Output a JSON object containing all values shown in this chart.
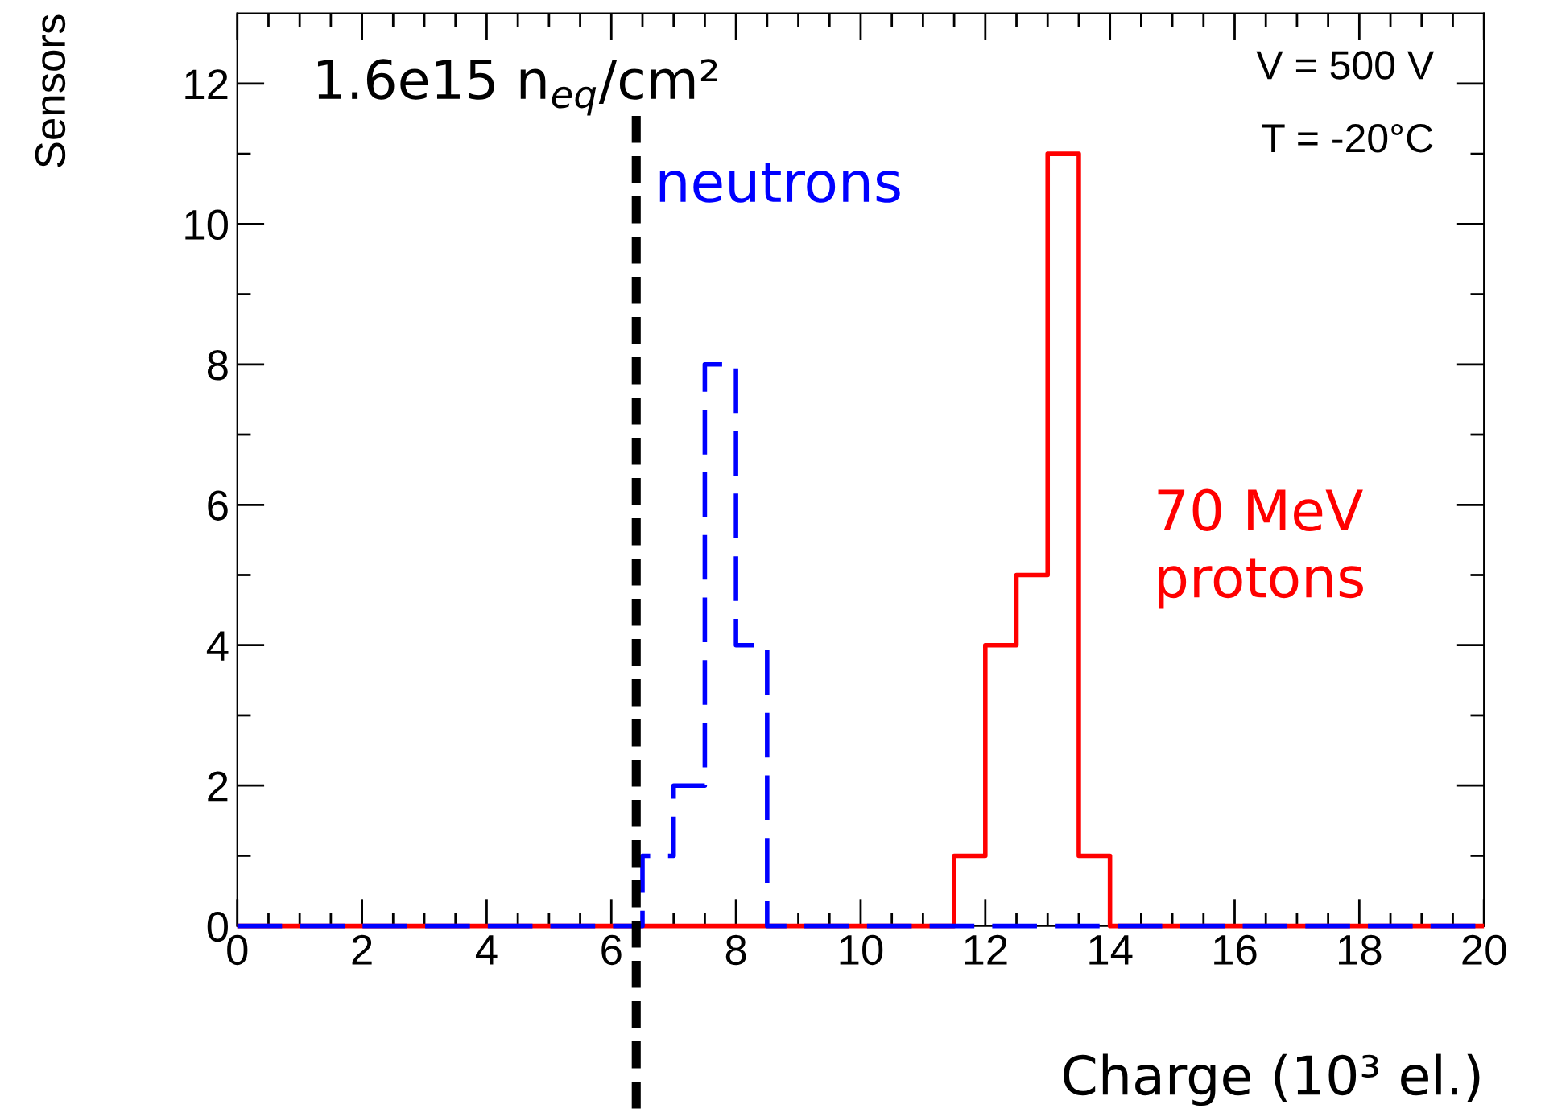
{
  "chart_data": {
    "type": "histogram",
    "xlabel": "Charge (10³ el.)",
    "ylabel": "Sensors",
    "bins": [
      0,
      0.5,
      1,
      1.5,
      2,
      2.5,
      3,
      3.5,
      4,
      4.5,
      5,
      5.5,
      6,
      6.5,
      7,
      7.5,
      8,
      8.5,
      9,
      9.5,
      10,
      10.5,
      11,
      11.5,
      12,
      12.5,
      13,
      13.5,
      14,
      14.5,
      15,
      15.5,
      16,
      16.5,
      17,
      17.5,
      18,
      18.5,
      19,
      19.5,
      20
    ],
    "series": [
      {
        "name": "70 MeV\nprotons",
        "color": "#ff0000",
        "line_style": "solid",
        "values": [
          0,
          0,
          0,
          0,
          0,
          0,
          0,
          0,
          0,
          0,
          0,
          0,
          0,
          0,
          0,
          0,
          0,
          0,
          0,
          0,
          0,
          0,
          0,
          1,
          4,
          5,
          11,
          1,
          0,
          0,
          0,
          0,
          0,
          0,
          0,
          0,
          0,
          0,
          0,
          0
        ]
      },
      {
        "name": "neutrons",
        "color": "#0000ff",
        "line_style": "dashed",
        "values": [
          0,
          0,
          0,
          0,
          0,
          0,
          0,
          0,
          0,
          0,
          0,
          0,
          0,
          1,
          2,
          8,
          4,
          0,
          0,
          0,
          0,
          0,
          0,
          0,
          0,
          0,
          0,
          0,
          0,
          0,
          0,
          0,
          0,
          0,
          0,
          0,
          0,
          0,
          0,
          0
        ]
      }
    ],
    "xlim": [
      0,
      20
    ],
    "ylim": [
      0,
      13
    ],
    "xticks": [
      0,
      {
        "value": 0.5,
        "label": null
      },
      {
        "value": 1,
        "label": null
      },
      {
        "value": 1.5,
        "label": null
      },
      2,
      {
        "value": 2.5,
        "label": null
      },
      {
        "value": 3,
        "label": null
      },
      {
        "value": 3.5,
        "label": null
      },
      4,
      {
        "value": 4.5,
        "label": null
      },
      {
        "value": 5,
        "label": null
      },
      {
        "value": 5.5,
        "label": null
      },
      6,
      {
        "value": 6.5,
        "label": null
      },
      {
        "value": 7,
        "label": null
      },
      {
        "value": 7.5,
        "label": null
      },
      8,
      {
        "value": 8.5,
        "label": null
      },
      {
        "value": 9,
        "label": null
      },
      {
        "value": 9.5,
        "label": null
      },
      10,
      {
        "value": 10.5,
        "label": null
      },
      {
        "value": 11,
        "label": null
      },
      {
        "value": 11.5,
        "label": null
      },
      12,
      {
        "value": 12.5,
        "label": null
      },
      {
        "value": 13,
        "label": null
      },
      {
        "value": 13.5,
        "label": null
      },
      14,
      {
        "value": 14.5,
        "label": null
      },
      {
        "value": 15,
        "label": null
      },
      {
        "value": 15.5,
        "label": null
      },
      16,
      {
        "value": 16.5,
        "label": null
      },
      {
        "value": 17,
        "label": null
      },
      {
        "value": 17.5,
        "label": null
      },
      18,
      {
        "value": 18.5,
        "label": null
      },
      {
        "value": 19,
        "label": null
      },
      {
        "value": 19.5,
        "label": null
      },
      20
    ],
    "yticks": [
      0,
      {
        "value": 1,
        "label": null
      },
      2,
      {
        "value": 3,
        "label": null
      },
      4,
      {
        "value": 5,
        "label": null
      },
      6,
      {
        "value": 7,
        "label": null
      },
      8,
      {
        "value": 9,
        "label": null
      },
      10,
      {
        "value": 11,
        "label": null
      },
      12
    ],
    "ref_lines": [
      {
        "axis": "x",
        "value": 6.4,
        "color": "#000000",
        "line_style": "dashed"
      }
    ],
    "annotations": [
      "1.6e15 n$_{eq}$/cm²",
      "V = 500 V",
      "T = -20°C"
    ],
    "grid": false,
    "legend": false
  }
}
